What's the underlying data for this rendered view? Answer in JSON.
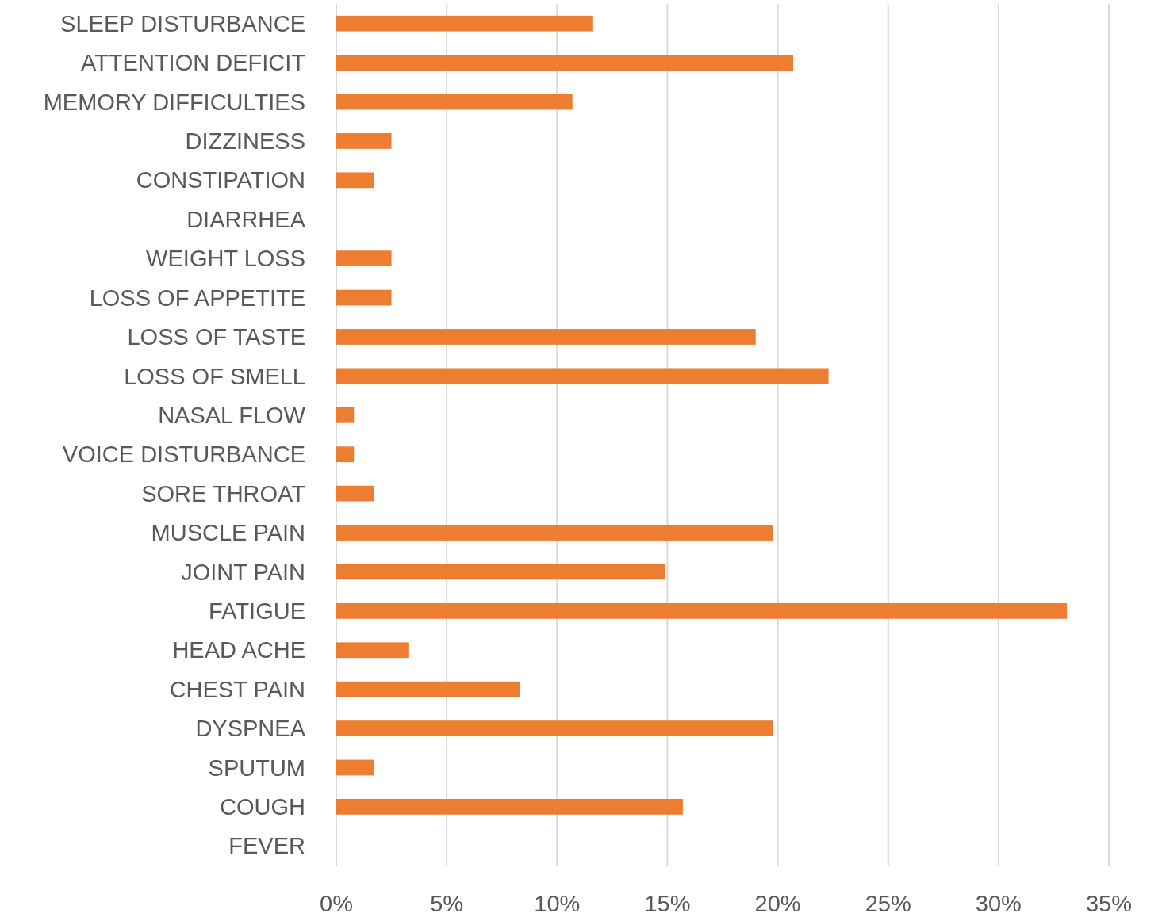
{
  "chart_data": {
    "type": "bar",
    "orientation": "horizontal",
    "categories": [
      "SLEEP DISTURBANCE",
      "ATTENTION DEFICIT",
      "MEMORY DIFFICULTIES",
      "DIZZINESS",
      "CONSTIPATION",
      "DIARRHEA",
      "WEIGHT LOSS",
      "LOSS OF APPETITE",
      "LOSS OF TASTE",
      "LOSS OF SMELL",
      "NASAL FLOW",
      "VOICE DISTURBANCE",
      "SORE THROAT",
      "MUSCLE PAIN",
      "JOINT PAIN",
      "FATIGUE",
      "HEAD ACHE",
      "CHEST PAIN",
      "DYSPNEA",
      "SPUTUM",
      "COUGH",
      "FEVER"
    ],
    "values": [
      11.6,
      20.7,
      10.7,
      2.5,
      1.7,
      0,
      2.5,
      2.5,
      19.0,
      22.3,
      0.8,
      0.8,
      1.7,
      19.8,
      14.9,
      33.1,
      3.3,
      8.3,
      19.8,
      1.7,
      15.7,
      0
    ],
    "color": "#ed7d31",
    "xlim": [
      0,
      35
    ],
    "xticks": [
      {
        "value": 0,
        "label": "0%"
      },
      {
        "value": 5,
        "label": "5%"
      },
      {
        "value": 10,
        "label": "10%"
      },
      {
        "value": 15,
        "label": "15%"
      },
      {
        "value": 20,
        "label": "20%"
      },
      {
        "value": 25,
        "label": "25%"
      },
      {
        "value": 30,
        "label": "30%"
      },
      {
        "value": 35,
        "label": "35%"
      }
    ],
    "grid": "x"
  }
}
